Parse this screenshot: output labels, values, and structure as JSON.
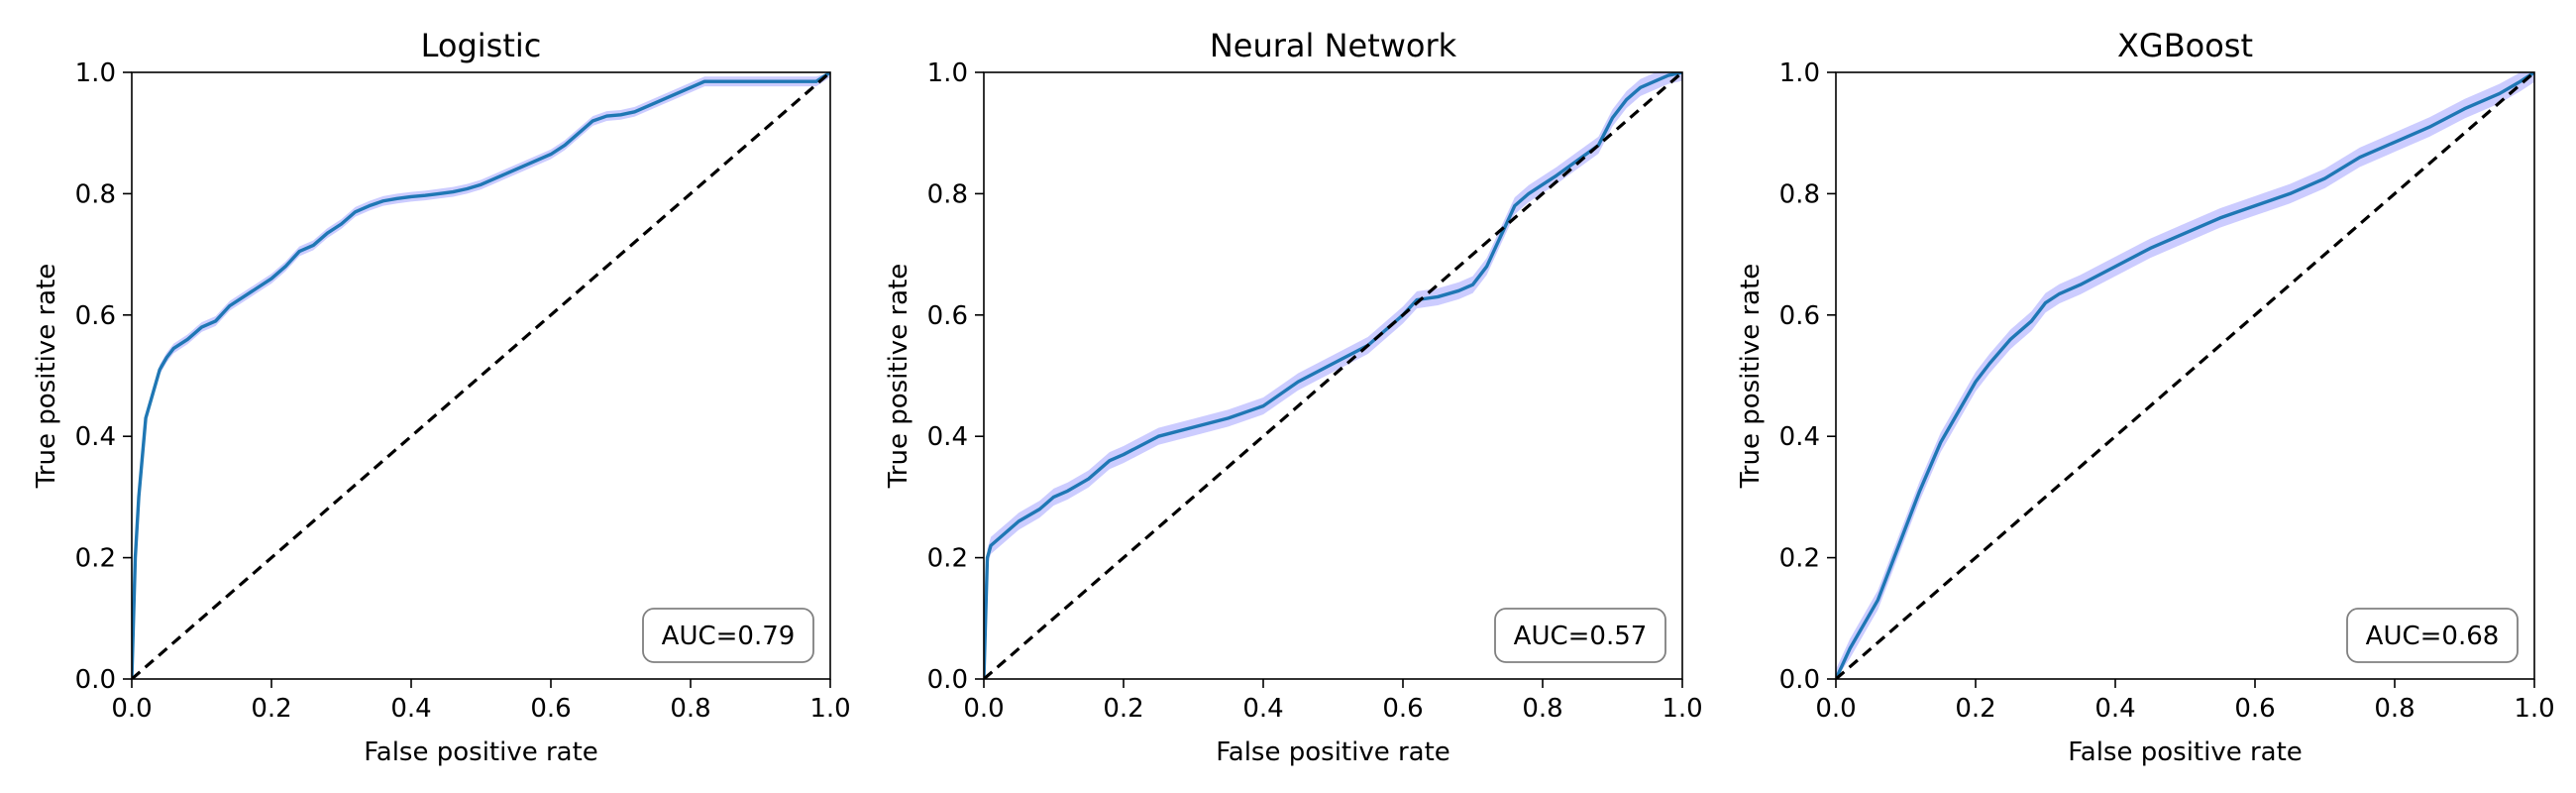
{
  "chart_data": [
    {
      "type": "line",
      "title": "Logistic",
      "xlabel": "False positive rate",
      "ylabel": "True positive rate",
      "xlim": [
        0,
        1
      ],
      "ylim": [
        0,
        1
      ],
      "xticks": [
        "0.0",
        "0.2",
        "0.4",
        "0.6",
        "0.8",
        "1.0"
      ],
      "yticks": [
        "0.0",
        "0.2",
        "0.4",
        "0.6",
        "0.8",
        "1.0"
      ],
      "annotation": "AUC=0.79",
      "annotation_position": "bottom-right",
      "band_width": 0.008,
      "series": [
        {
          "color": "#1f77b4",
          "x": [
            0,
            0.005,
            0.01,
            0.02,
            0.03,
            0.04,
            0.05,
            0.06,
            0.08,
            0.1,
            0.12,
            0.14,
            0.16,
            0.18,
            0.2,
            0.22,
            0.24,
            0.26,
            0.28,
            0.3,
            0.32,
            0.34,
            0.36,
            0.38,
            0.4,
            0.42,
            0.44,
            0.46,
            0.48,
            0.5,
            0.52,
            0.54,
            0.56,
            0.58,
            0.6,
            0.62,
            0.64,
            0.66,
            0.68,
            0.7,
            0.72,
            0.74,
            0.76,
            0.78,
            0.8,
            0.82,
            0.84,
            0.86,
            0.9,
            0.95,
            0.98,
            1.0
          ],
          "y": [
            0,
            0.2,
            0.3,
            0.43,
            0.47,
            0.51,
            0.53,
            0.545,
            0.56,
            0.58,
            0.59,
            0.615,
            0.63,
            0.645,
            0.66,
            0.68,
            0.705,
            0.715,
            0.735,
            0.75,
            0.77,
            0.78,
            0.788,
            0.792,
            0.795,
            0.797,
            0.8,
            0.803,
            0.808,
            0.815,
            0.825,
            0.835,
            0.845,
            0.855,
            0.865,
            0.88,
            0.9,
            0.92,
            0.928,
            0.93,
            0.935,
            0.945,
            0.955,
            0.965,
            0.975,
            0.985,
            0.985,
            0.985,
            0.985,
            0.985,
            0.985,
            1.0
          ]
        },
        {
          "color": "#000000",
          "style": "dashed",
          "x": [
            0,
            1
          ],
          "y": [
            0,
            1
          ]
        }
      ]
    },
    {
      "type": "line",
      "title": "Neural Network",
      "xlabel": "False positive rate",
      "ylabel": "True positive rate",
      "xlim": [
        0,
        1
      ],
      "ylim": [
        0,
        1
      ],
      "xticks": [
        "0.0",
        "0.2",
        "0.4",
        "0.6",
        "0.8",
        "1.0"
      ],
      "yticks": [
        "0.0",
        "0.2",
        "0.4",
        "0.6",
        "0.8",
        "1.0"
      ],
      "annotation": "AUC=0.57",
      "annotation_position": "bottom-right",
      "band_width": 0.014,
      "series": [
        {
          "color": "#1f77b4",
          "x": [
            0,
            0.005,
            0.01,
            0.03,
            0.05,
            0.08,
            0.1,
            0.12,
            0.15,
            0.18,
            0.2,
            0.25,
            0.3,
            0.35,
            0.4,
            0.45,
            0.5,
            0.55,
            0.6,
            0.62,
            0.65,
            0.68,
            0.7,
            0.72,
            0.74,
            0.76,
            0.78,
            0.8,
            0.82,
            0.85,
            0.88,
            0.9,
            0.92,
            0.94,
            0.96,
            0.98,
            1.0
          ],
          "y": [
            0,
            0.2,
            0.22,
            0.24,
            0.26,
            0.28,
            0.3,
            0.31,
            0.33,
            0.36,
            0.37,
            0.4,
            0.415,
            0.43,
            0.45,
            0.49,
            0.52,
            0.55,
            0.6,
            0.625,
            0.63,
            0.64,
            0.65,
            0.68,
            0.73,
            0.78,
            0.8,
            0.815,
            0.83,
            0.855,
            0.88,
            0.925,
            0.955,
            0.975,
            0.985,
            0.995,
            1.0
          ]
        },
        {
          "color": "#000000",
          "style": "dashed",
          "x": [
            0,
            1
          ],
          "y": [
            0,
            1
          ]
        }
      ]
    },
    {
      "type": "line",
      "title": "XGBoost",
      "xlabel": "False positive rate",
      "ylabel": "True positive rate",
      "xlim": [
        0,
        1
      ],
      "ylim": [
        0,
        1
      ],
      "xticks": [
        "0.0",
        "0.2",
        "0.4",
        "0.6",
        "0.8",
        "1.0"
      ],
      "yticks": [
        "0.0",
        "0.2",
        "0.4",
        "0.6",
        "0.8",
        "1.0"
      ],
      "annotation": "AUC=0.68",
      "annotation_position": "bottom-right",
      "band_width": 0.016,
      "series": [
        {
          "color": "#1f77b4",
          "x": [
            0,
            0.02,
            0.04,
            0.06,
            0.08,
            0.1,
            0.12,
            0.15,
            0.18,
            0.2,
            0.22,
            0.25,
            0.28,
            0.3,
            0.32,
            0.35,
            0.4,
            0.45,
            0.5,
            0.55,
            0.6,
            0.65,
            0.7,
            0.75,
            0.8,
            0.85,
            0.9,
            0.95,
            0.98,
            1.0
          ],
          "y": [
            0,
            0.05,
            0.09,
            0.13,
            0.19,
            0.25,
            0.31,
            0.39,
            0.45,
            0.49,
            0.52,
            0.56,
            0.59,
            0.62,
            0.635,
            0.65,
            0.68,
            0.71,
            0.735,
            0.76,
            0.78,
            0.8,
            0.825,
            0.86,
            0.885,
            0.91,
            0.94,
            0.965,
            0.985,
            1.0
          ]
        },
        {
          "color": "#000000",
          "style": "dashed",
          "x": [
            0,
            1
          ],
          "y": [
            0,
            1
          ]
        }
      ]
    }
  ],
  "colors": {
    "roc_line": "#1f77b4",
    "confidence_band": "#8080ff",
    "diagonal": "#000000",
    "annotation_border": "#808080"
  }
}
